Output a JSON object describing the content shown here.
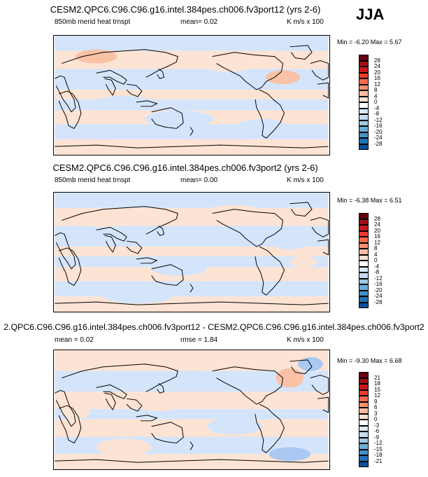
{
  "season": "JJA",
  "panels": [
    {
      "title": "CESM2.QPC6.C96.C96.g16.intel.384pes.ch006.fv3port12 (yrs 2-6)",
      "left_label": "850mb merid heat trnspt",
      "center_label": "mean=  0.02",
      "right_label": "K m/s x 100",
      "minmax": "Min = -6.20 Max =  5.67",
      "colorbar_levels": [
        "28",
        "24",
        "20",
        "16",
        "12",
        "8",
        "4",
        "0",
        "-4",
        "-8",
        "-12",
        "-16",
        "-20",
        "-24",
        "-28"
      ]
    },
    {
      "title": "CESM2.QPC6.C96.C96.g16.intel.384pes.ch006.fv3port2 (yrs 2-6)",
      "left_label": "850mb merid heat trnspt",
      "center_label": "mean=  0.00",
      "right_label": "K m/s x 100",
      "minmax": "Min = -6.38 Max =  6.51",
      "colorbar_levels": [
        "28",
        "24",
        "20",
        "16",
        "12",
        "8",
        "4",
        "0",
        "-4",
        "-8",
        "-12",
        "-16",
        "-20",
        "-24",
        "-28"
      ]
    },
    {
      "title": "2.QPC6.C96.C96.g16.intel.384pes.ch006.fv3port12 - CESM2.QPC6.C96.C96.g16.intel.384pes.ch006.fv3port2",
      "left_label": "mean =  0.02",
      "center_label": "rmse =  1.84",
      "right_label": "K m/s x 100",
      "minmax": "Min = -9.30 Max =  6.68",
      "colorbar_levels": [
        "21",
        "18",
        "15",
        "12",
        "9",
        "6",
        "3",
        "0",
        "-3",
        "-6",
        "-9",
        "-12",
        "-15",
        "-18",
        "-21"
      ]
    }
  ],
  "colors": {
    "colorbar": [
      "#67000d",
      "#a50f15",
      "#cb181d",
      "#ef3b2c",
      "#fb6a4a",
      "#fc9272",
      "#fcbba1",
      "#fde0d2",
      "#ffffff",
      "#dce9fb",
      "#c6dbef",
      "#9ecae1",
      "#6baed6",
      "#4292c6",
      "#2171b5",
      "#08519c"
    ],
    "map_positive": "#fde3d3",
    "map_negative": "#d4e5fb",
    "map_strong_positive": "#f9c2a6",
    "map_strong_negative": "#a9c9f3"
  }
}
